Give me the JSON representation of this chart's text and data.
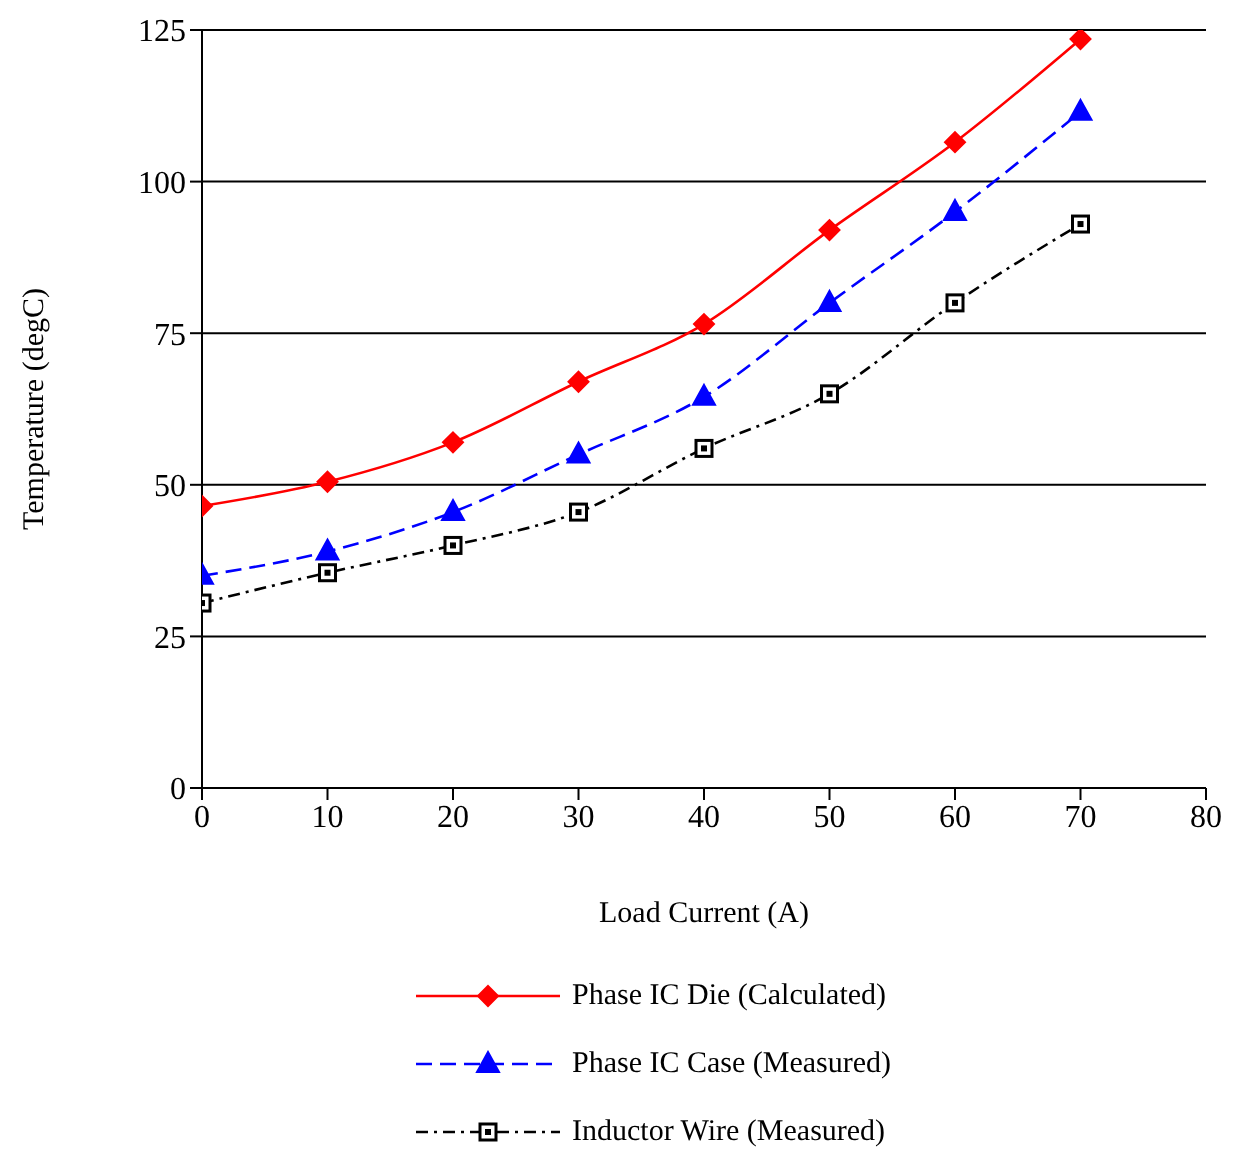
{
  "chart_data": {
    "type": "line",
    "xlabel": "Load Current (A)",
    "ylabel": "Temperature (degC)",
    "x": [
      0,
      10,
      20,
      30,
      40,
      50,
      60,
      70
    ],
    "series": [
      {
        "name": "Phase IC Die (Calculated)",
        "color": "#ff0000",
        "marker": "diamond",
        "line_style": "solid",
        "values": [
          46.5,
          50.5,
          57,
          67,
          76.5,
          92,
          106.5,
          123.5
        ]
      },
      {
        "name": "Phase IC Case (Measured)",
        "color": "#0000ff",
        "marker": "triangle",
        "line_style": "dashed",
        "values": [
          35,
          39,
          45.5,
          55,
          64.5,
          80,
          95,
          111.5
        ]
      },
      {
        "name": "Inductor Wire (Measured)",
        "color": "#000000",
        "marker": "square",
        "line_style": "dotted",
        "values": [
          30.5,
          35.5,
          40,
          45.5,
          56,
          65,
          80,
          93
        ]
      }
    ],
    "xlim": [
      0,
      80
    ],
    "xticks": [
      0,
      10,
      20,
      30,
      40,
      50,
      60,
      70,
      80
    ],
    "ylim": [
      0,
      125
    ],
    "yticks": [
      0,
      25,
      50,
      75,
      100,
      125
    ],
    "grid": "y",
    "legend": "bottom"
  }
}
